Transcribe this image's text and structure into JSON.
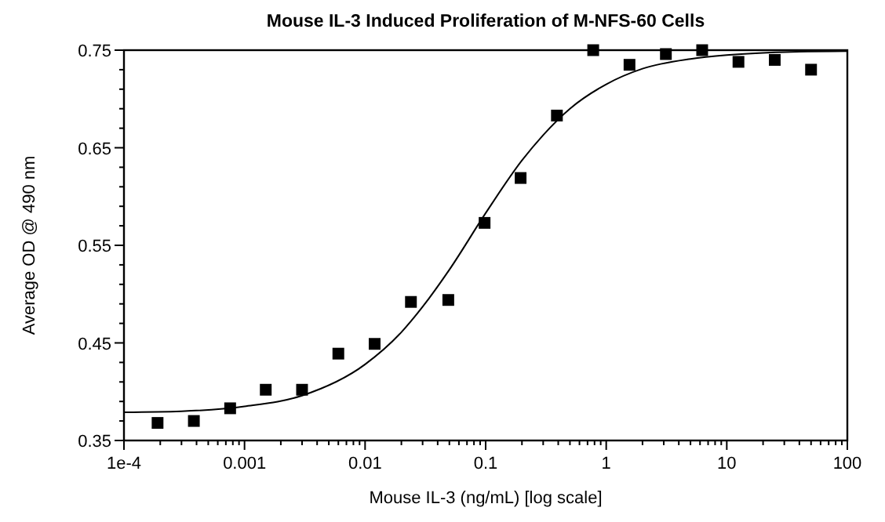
{
  "chart_data": {
    "type": "scatter",
    "title": "Mouse IL-3 Induced Proliferation of M-NFS-60 Cells",
    "xlabel": "Mouse IL-3 (ng/mL) [log scale]",
    "ylabel": "Average OD @ 490 nm",
    "log": "x",
    "grid": false,
    "xlim": [
      0.0001,
      100
    ],
    "xticks": [
      {
        "value": 0.0001,
        "label": "1e-4"
      },
      0.001,
      0.01,
      0.1,
      1,
      10,
      100
    ],
    "ylim": [
      0.35,
      0.75
    ],
    "yticks": [
      0.35,
      0.45,
      0.55,
      0.65,
      0.75
    ],
    "series": [
      {
        "color": "#000000",
        "marker": "square",
        "x": [
          0.00019,
          0.00038,
          0.00076,
          0.0015,
          0.003,
          0.006,
          0.012,
          0.024,
          0.049,
          0.098,
          0.195,
          0.39,
          0.78,
          1.56,
          3.125,
          6.25,
          12.5,
          25,
          50
        ],
        "values": [
          0.368,
          0.37,
          0.383,
          0.402,
          0.402,
          0.439,
          0.449,
          0.492,
          0.494,
          0.573,
          0.619,
          0.683,
          0.75,
          0.735,
          0.746,
          0.75,
          0.738,
          0.74,
          0.73
        ]
      },
      {
        "type": "line",
        "color": "#000000",
        "marker": "none",
        "line_style": "solid",
        "x": [
          0.0001,
          0.0003,
          0.001,
          0.003,
          0.01,
          0.02,
          0.03,
          0.05,
          0.1,
          0.2,
          0.3,
          0.5,
          1,
          2,
          5,
          10,
          30,
          100
        ],
        "values": [
          0.379,
          0.38,
          0.385,
          0.396,
          0.428,
          0.461,
          0.487,
          0.525,
          0.583,
          0.637,
          0.663,
          0.69,
          0.715,
          0.731,
          0.741,
          0.745,
          0.748,
          0.749
        ]
      }
    ]
  }
}
